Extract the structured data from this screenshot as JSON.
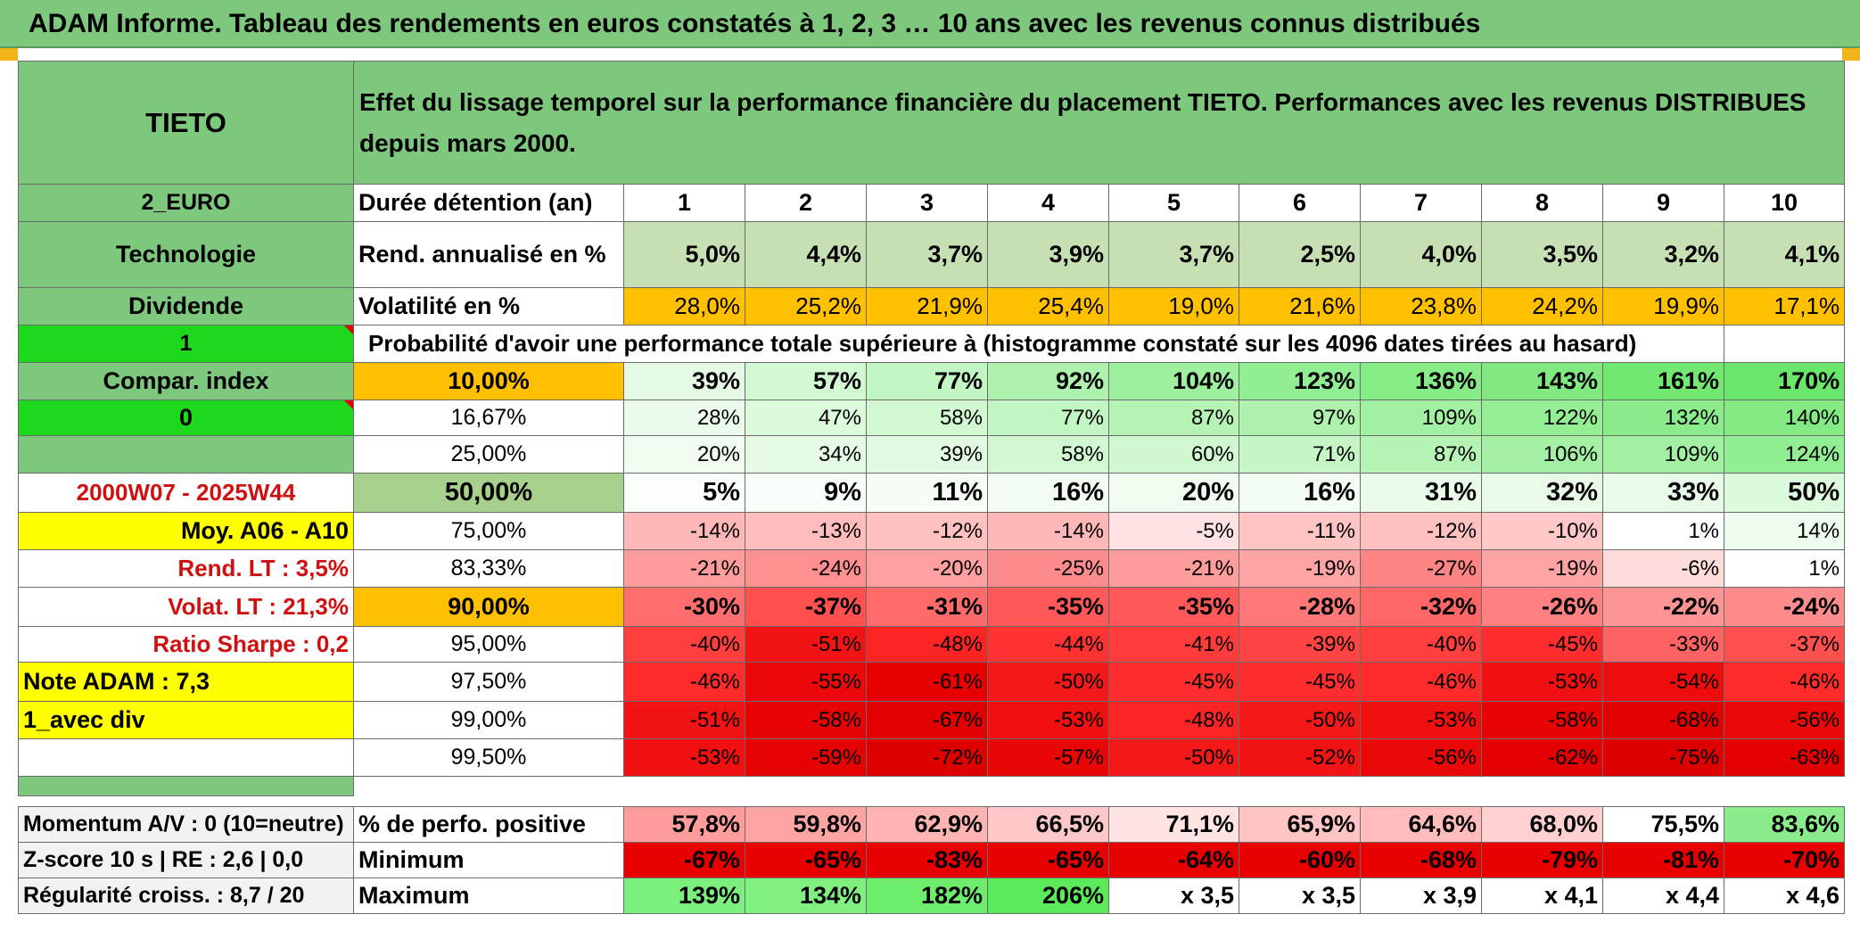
{
  "title": "ADAM Informe. Tableau des rendements en euros constatés à 1, 2, 3 … 10 ans avec les revenus connus distribués",
  "side": {
    "name": "TIETO",
    "currency": "2_EURO",
    "sector": "Technologie",
    "distribution": "Dividende",
    "param1": "1",
    "compar_index": "Compar. index",
    "param0": "0",
    "period": "2000W07 - 2025W44",
    "moy": "Moy. A06 - A10",
    "rend_lt": "Rend. LT :   3,5%",
    "volat_lt": "Volat. LT :   21,3%",
    "sharpe": "Ratio Sharpe :    0,2",
    "note": "Note ADAM : 7,3",
    "avec_div": "1_avec div"
  },
  "header_text": "Effet du lissage temporel sur la performance financière du placement TIETO. Performances avec les revenus DISTRIBUES depuis mars 2000.",
  "duration_label": "Durée détention (an)",
  "years": [
    "1",
    "2",
    "3",
    "4",
    "5",
    "6",
    "7",
    "8",
    "9",
    "10"
  ],
  "rend_label": "Rend. annualisé en %",
  "rend": [
    "5,0%",
    "4,4%",
    "3,7%",
    "3,9%",
    "3,7%",
    "2,5%",
    "4,0%",
    "3,5%",
    "3,2%",
    "4,1%"
  ],
  "vol_label": "Volatilité en %",
  "vol": [
    "28,0%",
    "25,2%",
    "21,9%",
    "25,4%",
    "19,0%",
    "21,6%",
    "23,8%",
    "24,2%",
    "19,9%",
    "17,1%"
  ],
  "prob_label": "Probabilité d'avoir une performance totale supérieure à (histogramme constaté sur les 4096 dates tirées au hasard)",
  "prob_rows": [
    {
      "p": "10,00%",
      "v": [
        "39%",
        "57%",
        "77%",
        "92%",
        "104%",
        "123%",
        "136%",
        "143%",
        "161%",
        "170%"
      ],
      "c": [
        "#e4fae4",
        "#d2f8d2",
        "#c2f6c2",
        "#aef2ae",
        "#9ef09e",
        "#92ee92",
        "#86ec86",
        "#80ea80",
        "#72e872",
        "#6ae66a"
      ]
    },
    {
      "p": "16,67%",
      "v": [
        "28%",
        "47%",
        "58%",
        "77%",
        "87%",
        "97%",
        "109%",
        "122%",
        "132%",
        "140%"
      ],
      "c": [
        "#ecfcec",
        "#dcfadc",
        "#d2f8d2",
        "#c2f6c2",
        "#b6f4b6",
        "#aef2ae",
        "#a2f0a2",
        "#94ee94",
        "#8cec8c",
        "#84ea84"
      ]
    },
    {
      "p": "25,00%",
      "v": [
        "20%",
        "34%",
        "39%",
        "58%",
        "60%",
        "71%",
        "87%",
        "106%",
        "109%",
        "124%"
      ],
      "c": [
        "#f2fdf2",
        "#e6fbe6",
        "#e2fae2",
        "#d2f8d2",
        "#d0f8d0",
        "#c6f6c6",
        "#b6f4b6",
        "#a4f0a4",
        "#a2f0a2",
        "#92ee92"
      ]
    },
    {
      "p": "50,00%",
      "v": [
        "5%",
        "9%",
        "11%",
        "16%",
        "20%",
        "16%",
        "31%",
        "32%",
        "33%",
        "50%"
      ],
      "c": [
        "#fbfffb",
        "#f8fef8",
        "#f6fef6",
        "#f3fdf3",
        "#f0fdf0",
        "#f3fdf3",
        "#eafbea",
        "#e8fbe8",
        "#e8fbe8",
        "#dcfadc"
      ]
    },
    {
      "p": "75,00%",
      "v": [
        "-14%",
        "-13%",
        "-12%",
        "-14%",
        "-5%",
        "-11%",
        "-12%",
        "-10%",
        "1%",
        "14%"
      ],
      "c": [
        "#ffb8b8",
        "#ffbcbc",
        "#ffc0c0",
        "#ffb8b8",
        "#ffe2e2",
        "#ffc4c4",
        "#ffc0c0",
        "#ffc8c8",
        "#ffffff",
        "#eefcee"
      ]
    },
    {
      "p": "83,33%",
      "v": [
        "-21%",
        "-24%",
        "-20%",
        "-25%",
        "-21%",
        "-19%",
        "-27%",
        "-19%",
        "-6%",
        "1%"
      ],
      "c": [
        "#ff9c9c",
        "#ff9090",
        "#ffa0a0",
        "#ff8c8c",
        "#ff9c9c",
        "#ffa4a4",
        "#ff8484",
        "#ffa4a4",
        "#ffdcdc",
        "#ffffff"
      ]
    },
    {
      "p": "90,00%",
      "v": [
        "-30%",
        "-37%",
        "-31%",
        "-35%",
        "-35%",
        "-28%",
        "-32%",
        "-26%",
        "-22%",
        "-24%"
      ],
      "c": [
        "#ff6e6e",
        "#ff5050",
        "#ff6a6a",
        "#ff5858",
        "#ff5858",
        "#ff7878",
        "#ff6666",
        "#ff8080",
        "#ff9494",
        "#ff8c8c"
      ]
    },
    {
      "p": "95,00%",
      "v": [
        "-40%",
        "-51%",
        "-48%",
        "-44%",
        "-41%",
        "-39%",
        "-40%",
        "-45%",
        "-33%",
        "-37%"
      ],
      "c": [
        "#ff3e3e",
        "#f21414",
        "#fa2424",
        "#ff3232",
        "#ff3c3c",
        "#ff4444",
        "#ff3e3e",
        "#ff2e2e",
        "#ff6262",
        "#ff5050"
      ]
    },
    {
      "p": "97,50%",
      "v": [
        "-46%",
        "-55%",
        "-61%",
        "-50%",
        "-45%",
        "-45%",
        "-46%",
        "-53%",
        "-54%",
        "-46%"
      ],
      "c": [
        "#ff2a2a",
        "#ec0808",
        "#e60000",
        "#f41818",
        "#ff2e2e",
        "#ff2e2e",
        "#ff2a2a",
        "#f01010",
        "#ee0c0c",
        "#ff2a2a"
      ]
    },
    {
      "p": "99,00%",
      "v": [
        "-51%",
        "-58%",
        "-67%",
        "-53%",
        "-48%",
        "-50%",
        "-53%",
        "-58%",
        "-68%",
        "-56%"
      ],
      "c": [
        "#f21414",
        "#e80404",
        "#e00000",
        "#f01010",
        "#fa2424",
        "#f41818",
        "#f01010",
        "#e80404",
        "#e00000",
        "#ea0808"
      ]
    },
    {
      "p": "99,50%",
      "v": [
        "-53%",
        "-59%",
        "-72%",
        "-57%",
        "-50%",
        "-52%",
        "-56%",
        "-62%",
        "-75%",
        "-63%"
      ],
      "c": [
        "#f01010",
        "#e60202",
        "#de0000",
        "#e80606",
        "#f41818",
        "#f21414",
        "#ea0808",
        "#e40000",
        "#dc0000",
        "#e40000"
      ]
    }
  ],
  "bottom": {
    "momentum": "Momentum A/V : 0 (10=neutre)",
    "zscore": "Z-score 10 s | RE : 2,6 | 0,0",
    "regularite": "Régularité croiss. : 8,7 / 20",
    "pos_label": "% de perfo. positive",
    "pos": [
      "57,8%",
      "59,8%",
      "62,9%",
      "66,5%",
      "71,1%",
      "65,9%",
      "64,6%",
      "68,0%",
      "75,5%",
      "83,6%"
    ],
    "pos_colors": [
      "#ff9c9c",
      "#ffa4a4",
      "#ffb4b4",
      "#ffc8c8",
      "#ffe4e4",
      "#ffc4c4",
      "#ffbcbc",
      "#ffd0d0",
      "#ffffff",
      "#8cec8c"
    ],
    "min_label": "Minimum",
    "min": [
      "-67%",
      "-65%",
      "-83%",
      "-65%",
      "-64%",
      "-60%",
      "-68%",
      "-79%",
      "-81%",
      "-70%"
    ],
    "max_label": "Maximum",
    "max": [
      "139%",
      "134%",
      "182%",
      "206%",
      "x 3,5",
      "x 3,5",
      "x 3,9",
      "x 4,1",
      "x 4,4",
      "x 4,6"
    ],
    "max_colors": [
      "#7cf07c",
      "#80f080",
      "#6cee6c",
      "#5aea5a",
      "#ffffff",
      "#ffffff",
      "#ffffff",
      "#ffffff",
      "#ffffff",
      "#ffffff"
    ]
  },
  "colors": {
    "header_green": "#7ec87e",
    "yellow": "#ffff00",
    "orange": "#ffc000",
    "lime": "#1ed81e",
    "rend_green": "#c6e0b4",
    "red_text": "#d01010",
    "min_red": "#e80000"
  }
}
